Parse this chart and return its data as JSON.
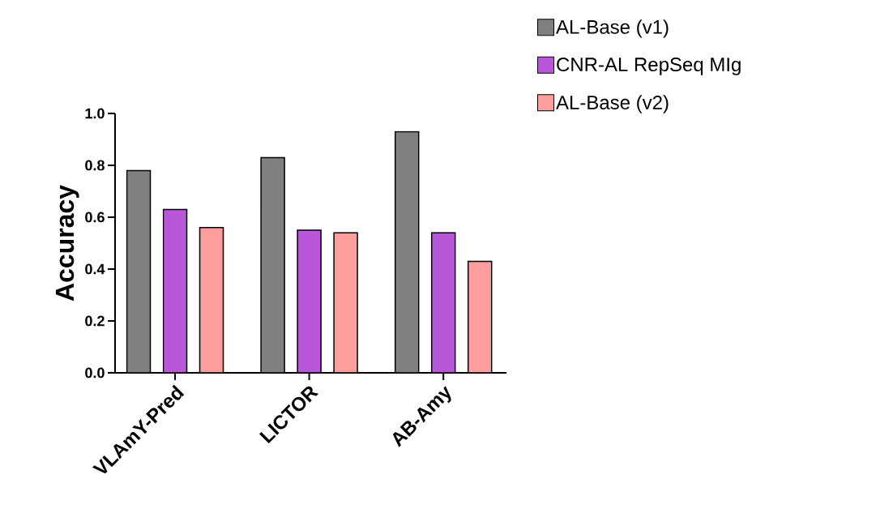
{
  "chart_data": {
    "type": "bar",
    "ylabel": "Accuracy",
    "categories": [
      "VLAmY-Pred",
      "LICTOR",
      "AB-Amy"
    ],
    "ylim": [
      0,
      1.0
    ],
    "yticks": [
      {
        "value": 0,
        "label": "0.0"
      },
      {
        "value": 0.2,
        "label": "0.2"
      },
      {
        "value": 0.4,
        "label": "0.4"
      },
      {
        "value": 0.6,
        "label": "0.6"
      },
      {
        "value": 0.8,
        "label": "0.8"
      },
      {
        "value": 1.0,
        "label": "1.0"
      }
    ],
    "legend": "top right",
    "series": [
      {
        "name": "AL-Base (v1)",
        "color": "#808080",
        "values": [
          0.78,
          0.83,
          0.93
        ]
      },
      {
        "name": "CNR-AL RepSeq MIg",
        "color": "#b857d8",
        "values": [
          0.63,
          0.55,
          0.54
        ]
      },
      {
        "name": "AL-Base (v2)",
        "color": "#fc9e9e",
        "values": [
          0.56,
          0.54,
          0.43
        ]
      }
    ]
  }
}
